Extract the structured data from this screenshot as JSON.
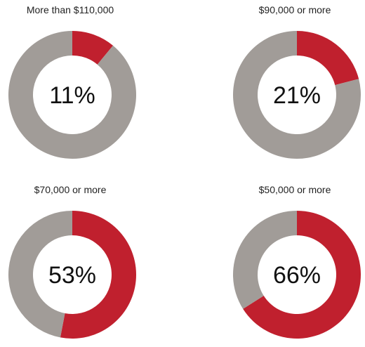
{
  "chart_data": [
    {
      "type": "pie",
      "title": "More than $110,000",
      "values": [
        11,
        89
      ],
      "center_label": "11%",
      "colors": [
        "#c0202e",
        "#a19c98"
      ]
    },
    {
      "type": "pie",
      "title": "$90,000 or more",
      "values": [
        21,
        79
      ],
      "center_label": "21%",
      "colors": [
        "#c0202e",
        "#a19c98"
      ]
    },
    {
      "type": "pie",
      "title": "$70,000 or more",
      "values": [
        53,
        47
      ],
      "center_label": "53%",
      "colors": [
        "#c0202e",
        "#a19c98"
      ]
    },
    {
      "type": "pie",
      "title": "$50,000 or more",
      "values": [
        66,
        34
      ],
      "center_label": "66%",
      "colors": [
        "#c0202e",
        "#a19c98"
      ]
    }
  ]
}
